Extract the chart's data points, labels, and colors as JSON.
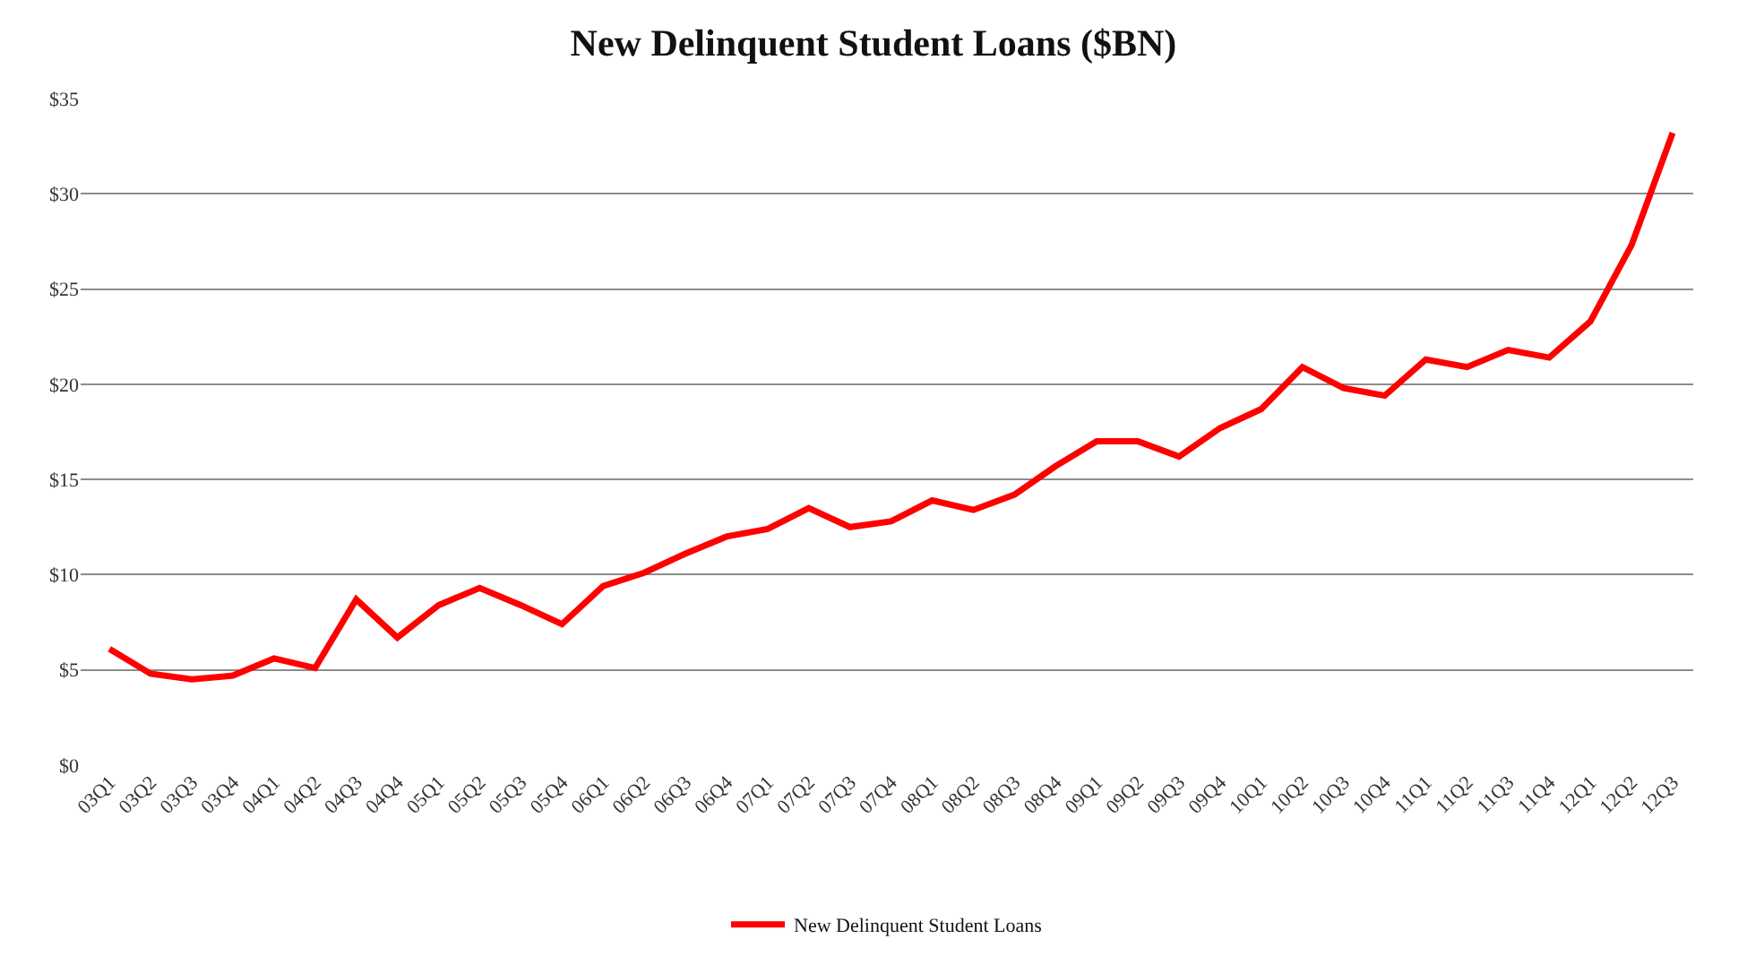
{
  "chart_data": {
    "type": "line",
    "title": "New Delinquent Student Loans ($BN)",
    "categories": [
      "03Q1",
      "03Q2",
      "03Q3",
      "03Q4",
      "04Q1",
      "04Q2",
      "04Q3",
      "04Q4",
      "05Q1",
      "05Q2",
      "05Q3",
      "05Q4",
      "06Q1",
      "06Q2",
      "06Q3",
      "06Q4",
      "07Q1",
      "07Q2",
      "07Q3",
      "07Q4",
      "08Q1",
      "08Q2",
      "08Q3",
      "08Q4",
      "09Q1",
      "09Q2",
      "09Q3",
      "09Q4",
      "10Q1",
      "10Q2",
      "10Q3",
      "10Q4",
      "11Q1",
      "11Q2",
      "11Q3",
      "11Q4",
      "12Q1",
      "12Q2",
      "12Q3"
    ],
    "series": [
      {
        "name": "New Delinquent Student Loans",
        "color": "#ff0000",
        "values": [
          6.1,
          4.8,
          4.5,
          4.7,
          5.6,
          5.1,
          8.7,
          6.7,
          8.4,
          9.3,
          8.4,
          7.4,
          9.4,
          10.1,
          11.1,
          12.0,
          12.4,
          13.5,
          12.5,
          12.8,
          13.9,
          13.4,
          14.2,
          15.7,
          17.0,
          17.0,
          16.2,
          17.7,
          18.7,
          20.9,
          19.8,
          19.4,
          21.3,
          20.9,
          21.8,
          21.4,
          23.3,
          27.3,
          33.2
        ]
      }
    ],
    "ylim": [
      0,
      35
    ],
    "yticks": [
      {
        "value": 0,
        "label": "$0"
      },
      {
        "value": 5,
        "label": "$5"
      },
      {
        "value": 10,
        "label": "$10"
      },
      {
        "value": 15,
        "label": "$15"
      },
      {
        "value": 20,
        "label": "$20"
      },
      {
        "value": 25,
        "label": "$25"
      },
      {
        "value": 30,
        "label": "$30"
      },
      {
        "value": 35,
        "label": "$35"
      }
    ],
    "grid": "y",
    "legend": "bottom",
    "line_style": "solid",
    "marker": "none"
  }
}
